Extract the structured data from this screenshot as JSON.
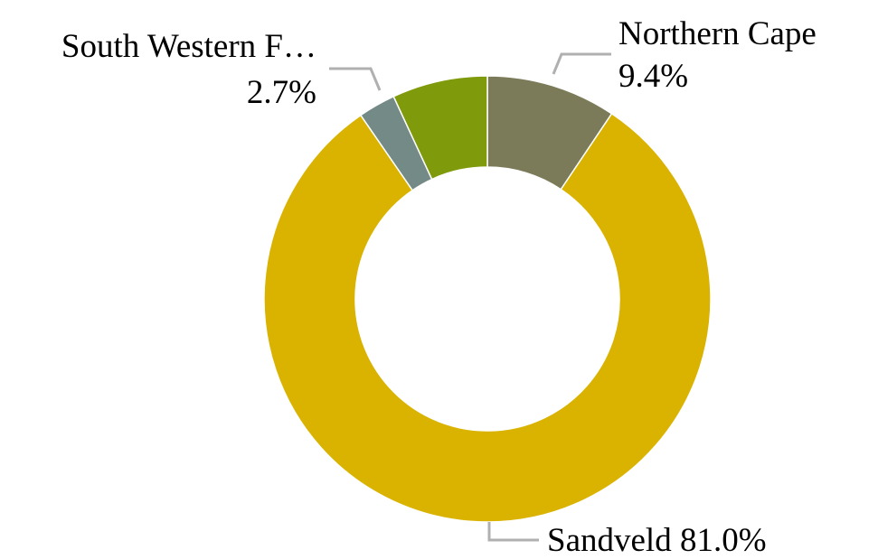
{
  "chart_data": {
    "type": "donut",
    "categories": [
      "Northern Cape",
      "Sandveld",
      "South Western F…",
      null
    ],
    "values": [
      9.4,
      81.0,
      2.7,
      6.9
    ],
    "value_labels": [
      "9.4%",
      "81.0%",
      "2.7%",
      null
    ],
    "colors": [
      "#7b7b5a",
      "#d9b300",
      "#748a87",
      "#7f9a0a"
    ]
  }
}
